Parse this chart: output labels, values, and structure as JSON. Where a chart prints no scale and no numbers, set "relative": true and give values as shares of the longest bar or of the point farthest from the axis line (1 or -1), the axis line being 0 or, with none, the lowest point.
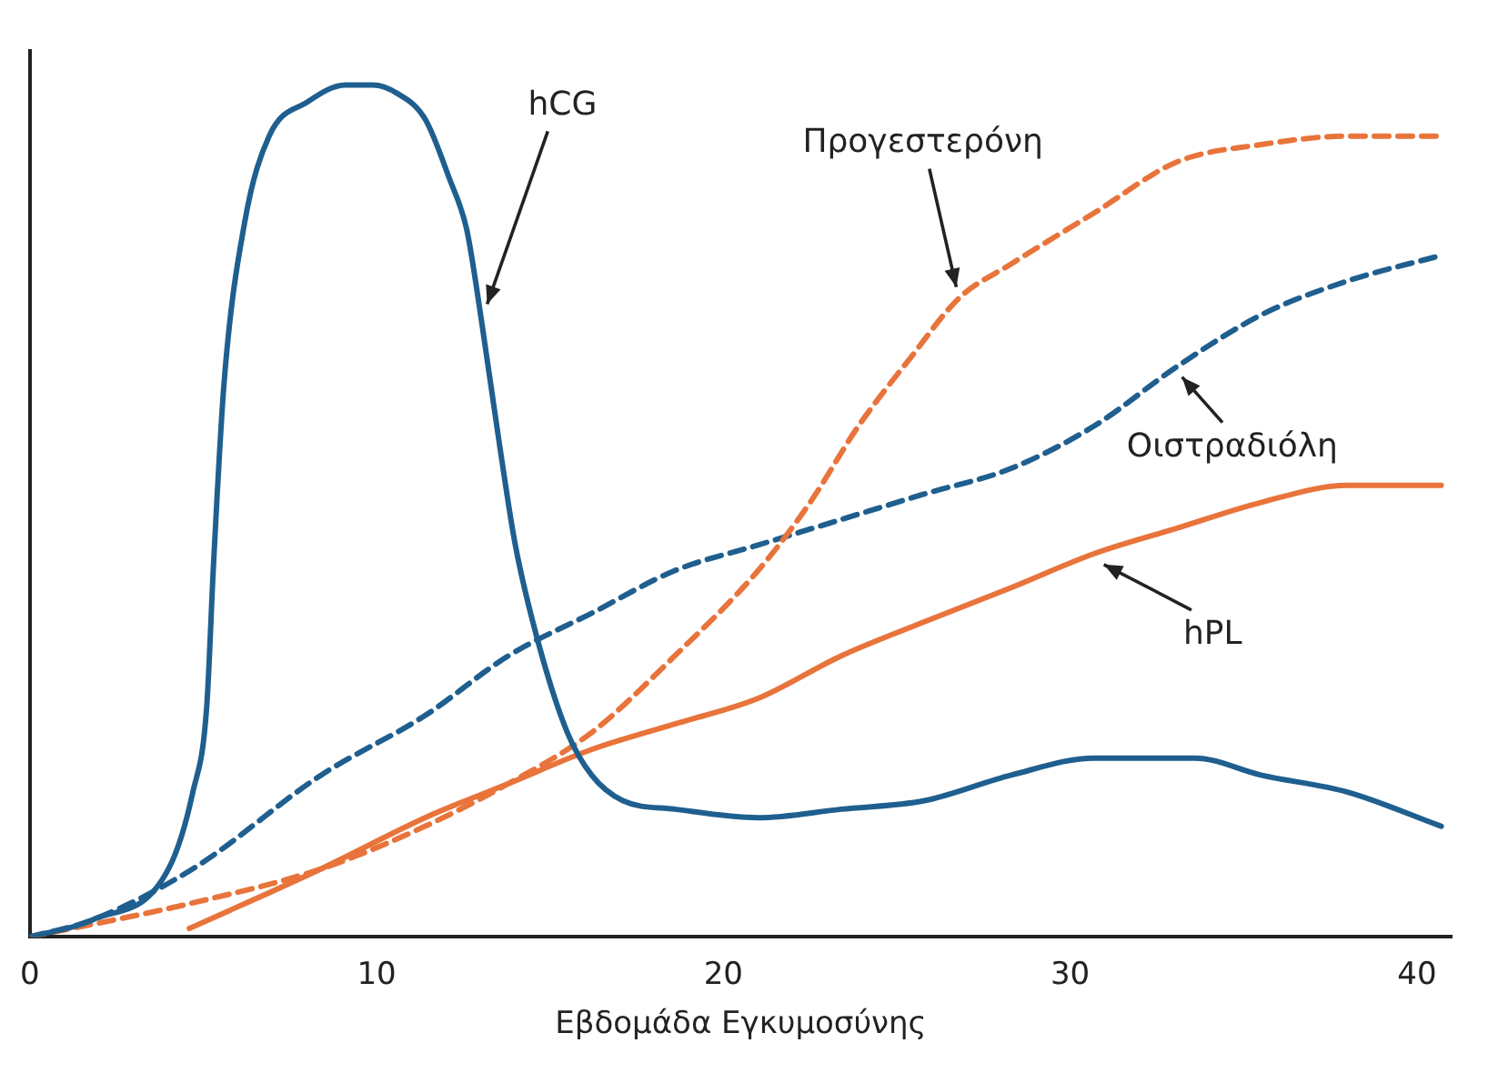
{
  "chart_data": {
    "type": "line",
    "relative": true,
    "xlabel": "Εβδομάδα Εγκυμοσύνης",
    "xlim": [
      0,
      41
    ],
    "xticks": [
      0,
      10,
      20,
      30,
      40
    ],
    "grid": false,
    "legend": false,
    "marker": "none",
    "series": [
      {
        "name": "hCG",
        "color": "#1f5f8f",
        "line_style": "solid",
        "x": [
          0,
          1.8,
          4.0,
          4.7,
          5.1,
          5.3,
          5.6,
          6.2,
          6.9,
          8.0,
          9.1,
          9.9,
          10.6,
          11.4,
          12.1,
          12.6,
          13.0,
          13.5,
          14.0,
          14.7,
          15.5,
          16.2,
          17.1,
          18.6,
          21.0,
          23.4,
          25.8,
          28.3,
          30.7,
          32.1,
          33.6,
          35.5,
          38.0,
          40.7
        ],
        "values": [
          0,
          0.02,
          0.08,
          0.17,
          0.27,
          0.44,
          0.65,
          0.84,
          0.94,
          0.98,
          1.0,
          1.0,
          0.99,
          0.96,
          0.89,
          0.83,
          0.73,
          0.59,
          0.46,
          0.34,
          0.24,
          0.19,
          0.16,
          0.15,
          0.14,
          0.15,
          0.16,
          0.19,
          0.21,
          0.21,
          0.21,
          0.19,
          0.17,
          0.13
        ]
      },
      {
        "name": "Προγεστερόνη",
        "color": "#e8743b",
        "line_style": "dashed",
        "x": [
          0,
          4.7,
          8.4,
          11.4,
          13.8,
          16.2,
          18.6,
          21.0,
          22.5,
          23.9,
          25.4,
          26.8,
          28.3,
          30.7,
          33.1,
          35.5,
          38.0,
          40.7
        ],
        "values": [
          0,
          0.04,
          0.08,
          0.13,
          0.18,
          0.24,
          0.33,
          0.43,
          0.51,
          0.6,
          0.68,
          0.75,
          0.79,
          0.85,
          0.91,
          0.93,
          0.94,
          0.94
        ]
      },
      {
        "name": "Οιστραδιόλη",
        "color": "#1f5f8f",
        "line_style": "dashed",
        "x": [
          0,
          1.8,
          4.7,
          8.4,
          11.4,
          13.8,
          16.2,
          18.6,
          21.0,
          23.4,
          25.8,
          28.3,
          30.7,
          33.1,
          35.5,
          38.0,
          40.7
        ],
        "values": [
          0,
          0.02,
          0.08,
          0.19,
          0.26,
          0.33,
          0.38,
          0.43,
          0.46,
          0.49,
          0.52,
          0.55,
          0.6,
          0.67,
          0.73,
          0.77,
          0.8
        ]
      },
      {
        "name": "hPL",
        "color": "#e8743b",
        "line_style": "solid",
        "x": [
          4.6,
          8.4,
          11.4,
          13.8,
          16.2,
          18.6,
          21.0,
          23.4,
          25.8,
          28.3,
          30.7,
          33.1,
          35.5,
          38.0,
          40.7
        ],
        "values": [
          0.01,
          0.08,
          0.14,
          0.18,
          0.22,
          0.25,
          0.28,
          0.33,
          0.37,
          0.41,
          0.45,
          0.48,
          0.51,
          0.53,
          0.53
        ]
      }
    ]
  }
}
